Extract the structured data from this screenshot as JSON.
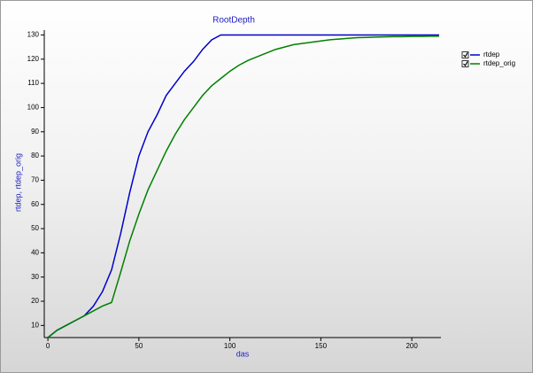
{
  "chart_data": {
    "type": "line",
    "title": "RootDepth",
    "x_label": "das",
    "y_label": "rtdep, rtdep_orig",
    "x": [
      0,
      5,
      10,
      15,
      20,
      25,
      30,
      35,
      40,
      45,
      50,
      55,
      60,
      65,
      70,
      75,
      80,
      85,
      90,
      95,
      100,
      105,
      110,
      115,
      120,
      125,
      130,
      135,
      140,
      145,
      150,
      155,
      160,
      165,
      170,
      175,
      180,
      185,
      190,
      195,
      200,
      205,
      210,
      215
    ],
    "series": [
      {
        "name": "rtdep",
        "color": "#0000cc",
        "values": [
          5,
          8,
          10,
          12,
          14,
          18,
          24,
          33,
          48,
          65,
          80,
          90,
          97,
          105,
          110,
          115,
          119,
          124,
          128,
          130,
          130,
          130,
          130,
          130,
          130,
          130,
          130,
          130,
          130,
          130,
          130,
          130,
          130,
          130,
          130,
          130,
          130,
          130,
          130,
          130,
          130,
          130,
          130,
          130
        ]
      },
      {
        "name": "rtdep_orig",
        "color": "#008000",
        "values": [
          5,
          8,
          10,
          12,
          14,
          16,
          18,
          19.5,
          32,
          45,
          56,
          66,
          74,
          82,
          89,
          95,
          100,
          105,
          109,
          112,
          115,
          117.5,
          119.5,
          121,
          122.5,
          124,
          125,
          126,
          126.5,
          127,
          127.5,
          128,
          128.3,
          128.6,
          128.9,
          129,
          129.1,
          129.2,
          129.3,
          129.3,
          129.4,
          129.4,
          129.5,
          129.5
        ]
      }
    ],
    "xlim": [
      -2,
      216
    ],
    "xticks": [
      0,
      50,
      100,
      150,
      200
    ],
    "ylim": [
      5,
      132
    ],
    "yticks": [
      10,
      20,
      30,
      40,
      50,
      60,
      70,
      80,
      90,
      100,
      110,
      120,
      130
    ]
  }
}
